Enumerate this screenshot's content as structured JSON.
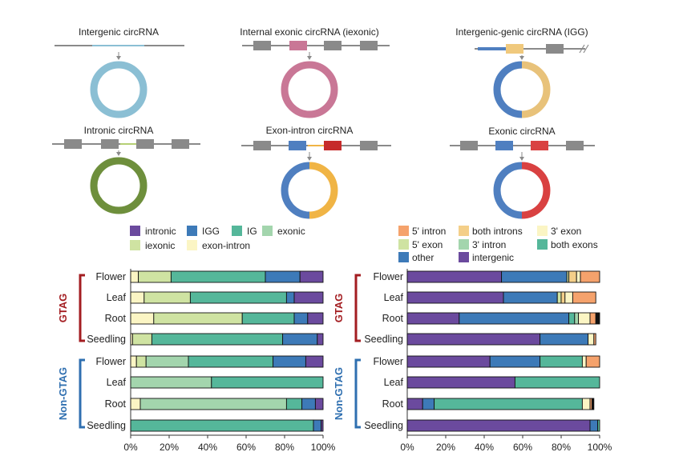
{
  "diagrams": [
    {
      "title": "Intergenic circRNA",
      "ring": [
        "#8bbfd4"
      ]
    },
    {
      "title": "Internal exonic circRNA (iexonic)",
      "ring": [
        "#c97796"
      ]
    },
    {
      "title": "Intergenic-genic circRNA (IGG)",
      "ring": [
        "#4f7fc0",
        "#e8c27a"
      ]
    },
    {
      "title": "Intronic circRNA",
      "ring": [
        "#6e8f3c"
      ]
    },
    {
      "title": "Exon-intron circRNA",
      "ring": [
        "#4f7fc0",
        "#f0b445"
      ]
    },
    {
      "title": "Exonic circRNA",
      "ring": [
        "#4f7fc0",
        "#d94141"
      ]
    }
  ],
  "groups": [
    {
      "label": "GTAG",
      "color": "#a31d21"
    },
    {
      "label": "Non-GTAG",
      "color": "#2f6fb0"
    }
  ],
  "chart_data": [
    {
      "type": "bar",
      "orientation": "horizontal",
      "stacked": true,
      "categories": [
        "Flower",
        "Leaf",
        "Root",
        "Seedling",
        "Flower",
        "Leaf",
        "Root",
        "Seedling"
      ],
      "xlim": [
        0,
        100
      ],
      "xticks": [
        "0%",
        "20%",
        "40%",
        "60%",
        "80%",
        "100%"
      ],
      "series": [
        {
          "name": "exon-intron",
          "color": "#fbf5c4",
          "values": [
            4,
            7,
            12,
            1,
            3,
            0,
            5,
            0
          ]
        },
        {
          "name": "iexonic",
          "color": "#cfe3a2",
          "values": [
            17,
            24,
            46,
            10,
            5,
            0,
            0,
            0
          ]
        },
        {
          "name": "exonic",
          "color": "#a3d5ad",
          "values": [
            0,
            0,
            0,
            0,
            22,
            42,
            76,
            0
          ]
        },
        {
          "name": "IG",
          "color": "#55b79a",
          "values": [
            49,
            50,
            27,
            68,
            44,
            58,
            8,
            95
          ]
        },
        {
          "name": "IGG",
          "color": "#3d7ab8",
          "values": [
            18,
            4,
            7,
            18,
            17,
            0,
            7,
            4
          ]
        },
        {
          "name": "intronic",
          "color": "#6b4a9e",
          "values": [
            12,
            15,
            8,
            3,
            9,
            0,
            4,
            1
          ]
        }
      ],
      "legend": [
        "intronic",
        "IGG",
        "IG",
        "exonic",
        "iexonic",
        "exon-intron"
      ]
    },
    {
      "type": "bar",
      "orientation": "horizontal",
      "stacked": true,
      "categories": [
        "Flower",
        "Leaf",
        "Root",
        "Seedling",
        "Flower",
        "Leaf",
        "Root",
        "Seedling"
      ],
      "xlim": [
        0,
        100
      ],
      "xticks": [
        "0%",
        "20%",
        "40%",
        "60%",
        "80%",
        "100%"
      ],
      "series": [
        {
          "name": "intergenic",
          "color": "#6b4a9e",
          "values": [
            49,
            50,
            27,
            69,
            43,
            56,
            8,
            95
          ]
        },
        {
          "name": "other",
          "color": "#3d7ab8",
          "values": [
            34,
            28,
            57,
            25,
            26,
            0,
            6,
            4
          ]
        },
        {
          "name": "both exons",
          "color": "#55b79a",
          "values": [
            0,
            0,
            3,
            0,
            22,
            44,
            77,
            1
          ]
        },
        {
          "name": "3' intron",
          "color": "#a3d5ad",
          "values": [
            0,
            0,
            2,
            0,
            0,
            0,
            0,
            0
          ]
        },
        {
          "name": "5' exon",
          "color": "#cfe3a2",
          "values": [
            1,
            2,
            0,
            0,
            0,
            0,
            0,
            0
          ]
        },
        {
          "name": "both introns",
          "color": "#f4cf89",
          "values": [
            4,
            2,
            0,
            0,
            0,
            0,
            0,
            0
          ]
        },
        {
          "name": "3' exon",
          "color": "#fbf5c4",
          "values": [
            2,
            4,
            6,
            3,
            2,
            0,
            4,
            0
          ]
        },
        {
          "name": "5' intron",
          "color": "#f5a26c",
          "values": [
            10,
            12,
            3,
            1,
            7,
            0,
            1,
            0
          ]
        },
        {
          "name": "black",
          "color": "#111111",
          "values": [
            0,
            0,
            2,
            0,
            0,
            0,
            1,
            0
          ]
        }
      ],
      "legend": [
        "5' intron",
        "both introns",
        "3' exon",
        "5' exon",
        "3' intron",
        "both exons",
        "other",
        "intergenic"
      ]
    }
  ]
}
